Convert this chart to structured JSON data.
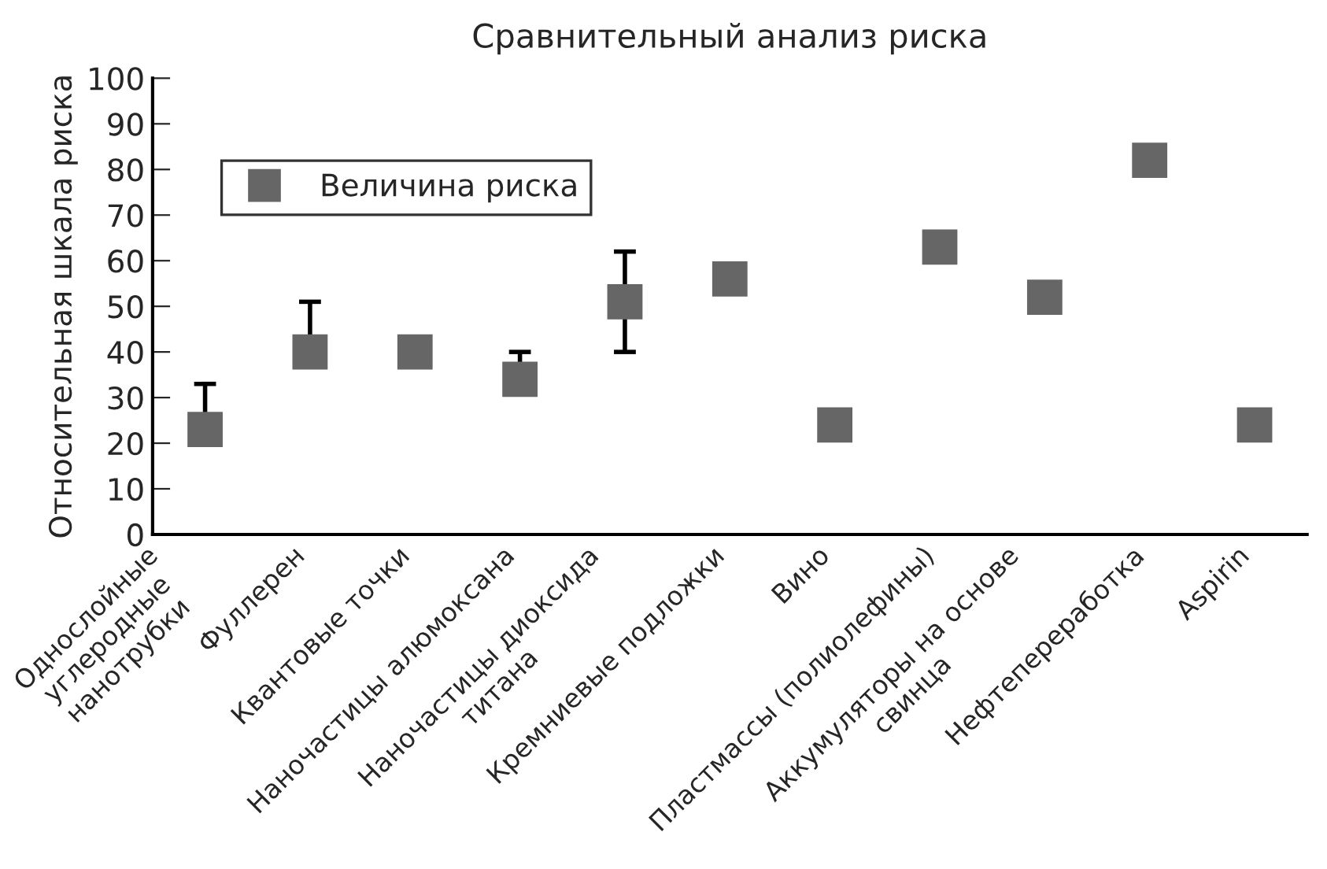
{
  "chart_data": {
    "type": "scatter",
    "title": "Сравнительный анализ риска",
    "ylabel": "Относительная шкала риска",
    "categories": [
      "Однослойные\nуглеродные\nнанотрубки",
      "Фуллерен",
      "Квантовые точки",
      "Наночастицы алюмоксана",
      "Наночастицы диоксида\nтитана",
      "Кремниевые подложки",
      "Вино",
      "Пластмассы (полиолефины)",
      "Аккумуляторы на основе\nсвинца",
      "Нефтепереработка",
      "Aspirin"
    ],
    "series": [
      {
        "name": "Величина риска",
        "color": "#666666",
        "values": [
          23,
          40,
          40,
          34,
          51,
          56,
          24,
          63,
          52,
          82,
          24
        ],
        "errors": [
          [
            23,
            33
          ],
          [
            40,
            51
          ],
          null,
          [
            34,
            40
          ],
          [
            40,
            62
          ],
          null,
          null,
          null,
          null,
          null,
          null
        ]
      }
    ],
    "ylim": [
      0,
      100
    ],
    "yticks": [
      0,
      10,
      20,
      30,
      40,
      50,
      60,
      70,
      80,
      90,
      100
    ],
    "marker": "square",
    "legend": "top left",
    "grid": false
  }
}
